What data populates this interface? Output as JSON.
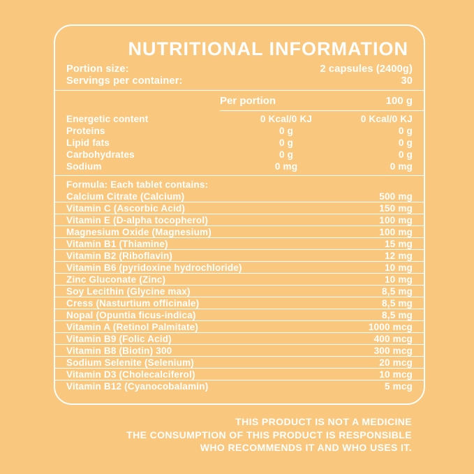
{
  "colors": {
    "background": "#F9C87E",
    "text": "#FFFFFF",
    "line": "#FFFFFF"
  },
  "title": "NUTRITIONAL INFORMATION",
  "serving_info": [
    {
      "label": "Portion size:",
      "value": "2 capsules (2400g)"
    },
    {
      "label": "Servings per container:",
      "value": "30"
    }
  ],
  "nutrient_table": {
    "columns": [
      "Per portion",
      "100 g"
    ],
    "rows": [
      {
        "label": "Energetic content",
        "per_portion": "0 Kcal/0 KJ",
        "per_100g": "0 Kcal/0 KJ"
      },
      {
        "label": "Proteins",
        "per_portion": "0 g",
        "per_100g": "0 g"
      },
      {
        "label": "Lipid fats",
        "per_portion": "0 g",
        "per_100g": "0 g"
      },
      {
        "label": "Carbohydrates",
        "per_portion": "0 g",
        "per_100g": "0 g"
      },
      {
        "label": "Sodium",
        "per_portion": "0 mg",
        "per_100g": "0 mg"
      }
    ]
  },
  "formula": {
    "heading": "Formula: Each tablet contains:",
    "rows": [
      {
        "label": "Calcium Citrate (Calcium)",
        "value": "500 mg"
      },
      {
        "label": "Vitamin C (Ascorbic Acid)",
        "value": "150 mg"
      },
      {
        "label": "Vitamin E (D-alpha tocopherol)",
        "value": "100 mg"
      },
      {
        "label": "Magnesium Oxide (Magnesium)",
        "value": "100 mg"
      },
      {
        "label": "Vitamin B1 (Thiamine)",
        "value": "15 mg"
      },
      {
        "label": "Vitamin B2 (Riboflavin)",
        "value": "12 mg"
      },
      {
        "label": "Vitamin B6 (pyridoxine hydrochloride)",
        "value": "10 mg"
      },
      {
        "label": "Zinc Gluconate (Zinc)",
        "value": "10 mg"
      },
      {
        "label": "Soy Lecithin (Glycine max)",
        "value": "8,5 mg"
      },
      {
        "label": "Cress (Nasturtium officinale)",
        "value": "8,5 mg"
      },
      {
        "label": "Nopal (Opuntia ficus-indica)",
        "value": "8,5 mg"
      },
      {
        "label": "Vitamin A (Retinol Palmitate)",
        "value": "1000 mcg"
      },
      {
        "label": "Vitamin B9 (Folic Acid)",
        "value": "400 mcg"
      },
      {
        "label": "Vitamin B8 (Biotin) 300",
        "value": "300 mcg"
      },
      {
        "label": "Sodium Selenite (Selenium)",
        "value": "20 mcg"
      },
      {
        "label": "Vitamin D3 (Cholecalciferol)",
        "value": "10 mcg"
      },
      {
        "label": "Vitamin B12 (Cyanocobalamin)",
        "value": "5 mcg"
      }
    ]
  },
  "disclaimer": [
    "THIS PRODUCT IS NOT A MEDICINE",
    "THE CONSUMPTION OF THIS PRODUCT IS RESPONSIBLE",
    "WHO RECOMMENDS IT AND WHO USES IT."
  ]
}
